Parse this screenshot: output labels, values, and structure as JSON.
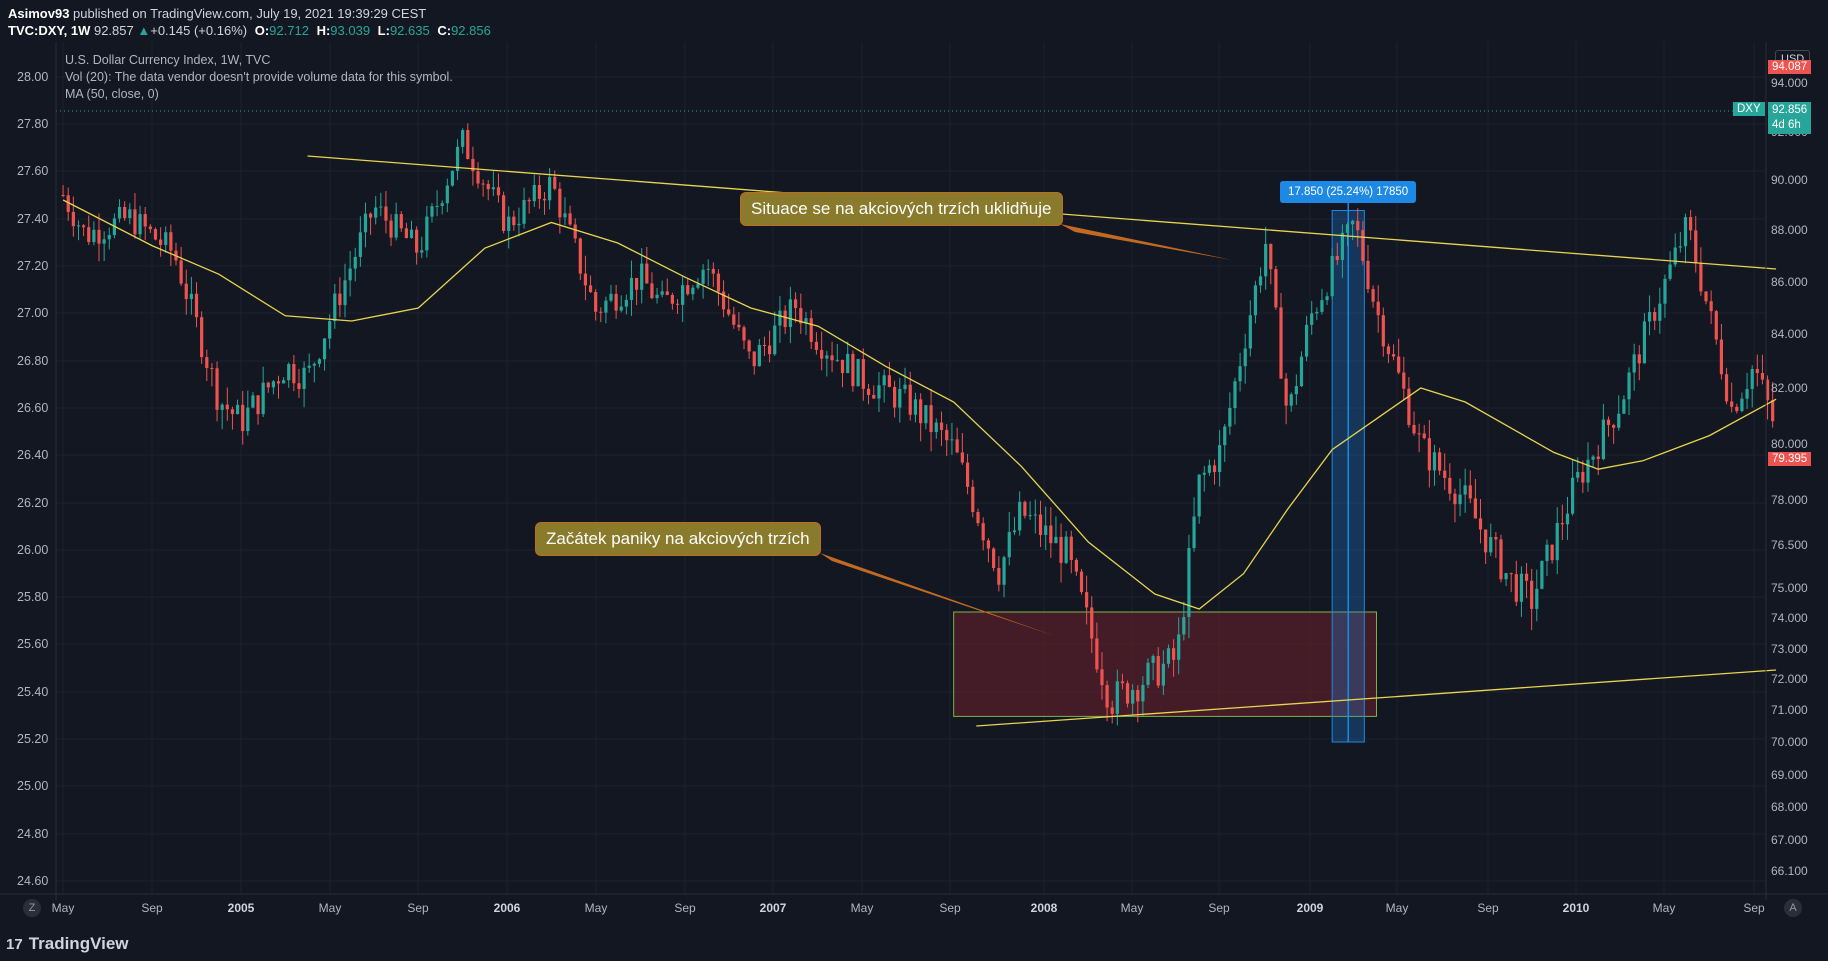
{
  "header": {
    "publisher": "Asimov93",
    "published_text": " published on TradingView.com, July 19, 2021 19:39:29 CEST",
    "symbol": "TVC:DXY, 1W",
    "last": "92.857",
    "change_arrow": "▲",
    "change": "+0.145 (+0.16%)",
    "o_label": "O:",
    "o_value": "92.712",
    "h_label": "H:",
    "h_value": "93.039",
    "l_label": "L:",
    "l_value": "92.635",
    "c_label": "C:",
    "c_value": "92.856"
  },
  "legend": {
    "title": "U.S. Dollar Currency Index, 1W, TVC",
    "volume": "Vol (20): The data vendor doesn't provide volume data for this symbol.",
    "ma": "MA (50, close, 0)"
  },
  "annotations": {
    "top_callout": "Situace se na akciových trzích uklidňuje",
    "bottom_callout": "Začátek paniky na akciových trzích",
    "measure": "17.850 (25.24%) 17850"
  },
  "left_axis": [
    "28.00",
    "27.80",
    "27.60",
    "27.40",
    "27.20",
    "27.00",
    "26.80",
    "26.60",
    "26.40",
    "26.20",
    "26.00",
    "25.80",
    "25.60",
    "25.40",
    "25.20",
    "25.00",
    "24.80",
    "24.60"
  ],
  "right_axis": [
    "94.000",
    "92.000",
    "90.000",
    "88.000",
    "86.000",
    "84.000",
    "82.000",
    "80.000",
    "78.000",
    "76.500",
    "75.000",
    "74.000",
    "73.000",
    "72.000",
    "71.000",
    "70.000",
    "69.000",
    "68.000",
    "67.000",
    "66.100"
  ],
  "right_tags": {
    "currency": "USD",
    "top_red": "94.087",
    "dxy_label": "DXY",
    "dxy_price": "92.856",
    "dxy_countdown": "4d 6h",
    "low_red": "79.395"
  },
  "time_axis": [
    {
      "label": "May",
      "bold": false
    },
    {
      "label": "Sep",
      "bold": false
    },
    {
      "label": "2005",
      "bold": true
    },
    {
      "label": "May",
      "bold": false
    },
    {
      "label": "Sep",
      "bold": false
    },
    {
      "label": "2006",
      "bold": true
    },
    {
      "label": "May",
      "bold": false
    },
    {
      "label": "Sep",
      "bold": false
    },
    {
      "label": "2007",
      "bold": true
    },
    {
      "label": "May",
      "bold": false
    },
    {
      "label": "Sep",
      "bold": false
    },
    {
      "label": "2008",
      "bold": true
    },
    {
      "label": "May",
      "bold": false
    },
    {
      "label": "Sep",
      "bold": false
    },
    {
      "label": "2009",
      "bold": true
    },
    {
      "label": "May",
      "bold": false
    },
    {
      "label": "Sep",
      "bold": false
    },
    {
      "label": "2010",
      "bold": true
    },
    {
      "label": "May",
      "bold": false
    },
    {
      "label": "Sep",
      "bold": false
    }
  ],
  "buttons": {
    "left": "Z",
    "right": "A"
  },
  "footer": {
    "brand": "TradingView",
    "logo": "17"
  },
  "colors": {
    "background": "#131722",
    "up": "#26a69a",
    "down": "#ef5350",
    "ma": "#e8d44d",
    "trendline": "#e8d44d",
    "zone_fill": "#5a1f2a",
    "zone_border": "#7cb342",
    "measure": "#1e88e5"
  },
  "chart_data": {
    "type": "candlestick",
    "title": "U.S. Dollar Currency Index, 1W, TVC",
    "x_range": [
      "2004-05",
      "2010-09"
    ],
    "ylim_right": [
      66.1,
      94.0
    ],
    "overlay": "MA (50, close, 0)",
    "pivots": [
      [
        "2004-05",
        89.4
      ],
      [
        "2004-06",
        87.8
      ],
      [
        "2004-08",
        88.5
      ],
      [
        "2004-10",
        87.1
      ],
      [
        "2004-12",
        81.6
      ],
      [
        "2005-01",
        80.8
      ],
      [
        "2005-03",
        82.8
      ],
      [
        "2005-04",
        82.4
      ],
      [
        "2005-07",
        88.9
      ],
      [
        "2005-09",
        87.2
      ],
      [
        "2005-11",
        91.6
      ],
      [
        "2006-01",
        88.2
      ],
      [
        "2006-03",
        89.9
      ],
      [
        "2006-05",
        84.9
      ],
      [
        "2006-07",
        86.2
      ],
      [
        "2006-08",
        85.1
      ],
      [
        "2006-10",
        86.7
      ],
      [
        "2006-12",
        82.9
      ],
      [
        "2007-02",
        85.1
      ],
      [
        "2007-03",
        83.8
      ],
      [
        "2007-05",
        82.3
      ],
      [
        "2007-07",
        81.5
      ],
      [
        "2007-09",
        79.8
      ],
      [
        "2007-11",
        75.6
      ],
      [
        "2007-12",
        77.6
      ],
      [
        "2008-02",
        76.2
      ],
      [
        "2008-04",
        71.3
      ],
      [
        "2008-07",
        72.7
      ],
      [
        "2008-08",
        78.6
      ],
      [
        "2008-09",
        79.8
      ],
      [
        "2008-11",
        87.5
      ],
      [
        "2008-12",
        80.9
      ],
      [
        "2009-01",
        84.6
      ],
      [
        "2009-03",
        88.3
      ],
      [
        "2009-04",
        84.9
      ],
      [
        "2009-06",
        79.9
      ],
      [
        "2009-08",
        78.0
      ],
      [
        "2009-10",
        75.3
      ],
      [
        "2009-11",
        74.6
      ],
      [
        "2010-01",
        78.6
      ],
      [
        "2010-03",
        81.5
      ],
      [
        "2010-06",
        88.2
      ],
      [
        "2010-08",
        81.3
      ],
      [
        "2010-09",
        82.8
      ],
      [
        "2010-10",
        80.5
      ]
    ],
    "ma50": [
      [
        "2004-05",
        89.2
      ],
      [
        "2004-09",
        87.4
      ],
      [
        "2004-12",
        86.3
      ],
      [
        "2005-03",
        84.7
      ],
      [
        "2005-06",
        84.5
      ],
      [
        "2005-09",
        85.0
      ],
      [
        "2005-12",
        87.3
      ],
      [
        "2006-03",
        88.3
      ],
      [
        "2006-06",
        87.5
      ],
      [
        "2006-09",
        86.2
      ],
      [
        "2006-12",
        85.0
      ],
      [
        "2007-03",
        84.3
      ],
      [
        "2007-06",
        82.8
      ],
      [
        "2007-09",
        81.5
      ],
      [
        "2007-12",
        79.2
      ],
      [
        "2008-03",
        76.6
      ],
      [
        "2008-06",
        74.8
      ],
      [
        "2008-08",
        74.3
      ],
      [
        "2008-10",
        75.5
      ],
      [
        "2008-12",
        77.7
      ],
      [
        "2009-02",
        79.8
      ],
      [
        "2009-04",
        80.9
      ],
      [
        "2009-06",
        82.0
      ],
      [
        "2009-08",
        81.5
      ],
      [
        "2009-10",
        80.6
      ],
      [
        "2009-12",
        79.7
      ],
      [
        "2010-02",
        79.1
      ],
      [
        "2010-04",
        79.4
      ],
      [
        "2010-07",
        80.3
      ],
      [
        "2010-10",
        81.6
      ]
    ],
    "resistance_line": {
      "from": [
        "2005-04",
        91.0
      ],
      "to": [
        "2010-10",
        86.5
      ]
    },
    "support_line": {
      "from": [
        "2007-10",
        70.5
      ],
      "to": [
        "2010-10",
        72.3
      ]
    },
    "zone": {
      "from": "2007-09",
      "to": "2009-04",
      "top": 74.2,
      "bottom": 70.8
    },
    "measure": {
      "from": "2009-02",
      "to": "2009-03",
      "top": 88.3,
      "bottom": 70.0,
      "label": "17.850 (25.24%) 17850"
    },
    "last_price": 92.856,
    "grid": true
  }
}
